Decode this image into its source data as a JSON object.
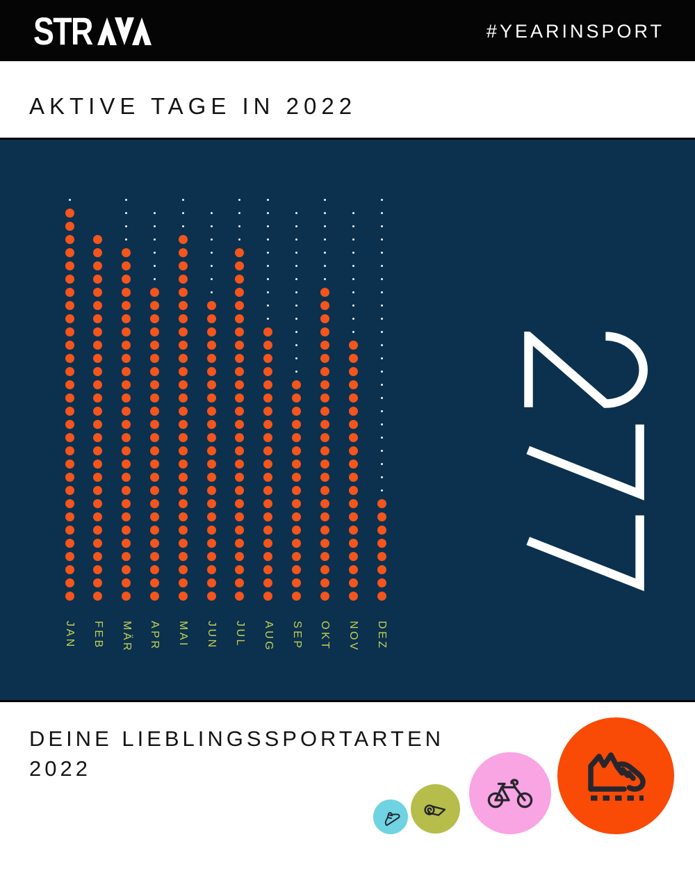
{
  "header": {
    "brand": "STRAVA",
    "logo_text_part": "STR",
    "hashtag": "#YEARINSPORT"
  },
  "active_days": {
    "title": "AKTIVE TAGE IN 2022",
    "total": "277"
  },
  "chart_data": {
    "type": "bar",
    "variant": "dot-matrix-calendar",
    "title": "AKTIVE TAGE IN 2022",
    "categories": [
      "JAN",
      "FEB",
      "MÄR",
      "APR",
      "MAI",
      "JUN",
      "JUL",
      "AUG",
      "SEP",
      "OKT",
      "NOV",
      "DEZ"
    ],
    "days_in_month": [
      31,
      28,
      31,
      30,
      31,
      30,
      31,
      31,
      30,
      31,
      30,
      31
    ],
    "values": [
      30,
      28,
      27,
      24,
      28,
      23,
      27,
      21,
      17,
      24,
      20,
      8
    ],
    "inactive_days": [
      1,
      0,
      4,
      6,
      3,
      7,
      4,
      10,
      13,
      7,
      10,
      23
    ],
    "total_active_days": 277,
    "ylabel": "",
    "xlabel": "",
    "grid": false,
    "legend_position": "none",
    "note": "each column is a month, bottom-aligned; one dot per day; orange = active day, small white = inactive day",
    "colors": {
      "background": "#0B314F",
      "active_dot": "#F4551C",
      "inactive_dot": "#FFFFFF",
      "month_label": "#C6D152",
      "total_number": "#FFFFFF"
    }
  },
  "favorites": {
    "title_line1": "DEINE LIEBLINGSSPORTARTEN",
    "title_line2": "2022",
    "sports": [
      {
        "icon": "walk-shoe-icon",
        "circle_color": "#6FD3E2"
      },
      {
        "icon": "yoga-mat-icon",
        "circle_color": "#B6BD4B"
      },
      {
        "icon": "bicycle-icon",
        "circle_color": "#F9A4E3"
      },
      {
        "icon": "running-shoe-icon",
        "circle_color": "#F94A06"
      }
    ],
    "icon_stroke_color": "#26262E"
  }
}
